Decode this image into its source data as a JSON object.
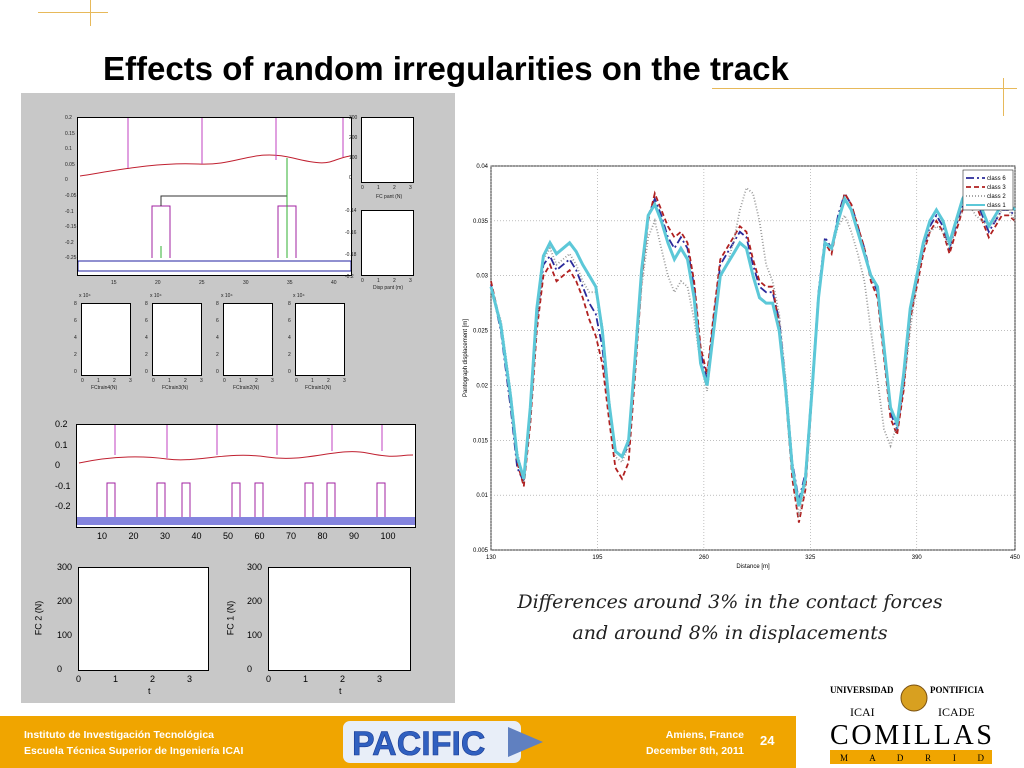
{
  "slide": {
    "title": "Effects of random irregularities on the track",
    "caption_line1": "Differences around 3% in the contact forces",
    "caption_line2": "and around 8% in displacements",
    "page_number": "24"
  },
  "footer": {
    "left_line1": "Instituto de Investigación Tecnológica",
    "left_line2": "Escuela Técnica Superior de Ingeniería ICAI",
    "right_line1": "Amiens, France",
    "right_line2": "December 8th, 2011",
    "band_color": "#f0a500"
  },
  "logos": {
    "pacific_text": "PACIFIC",
    "univ_line1": "UNIVERSIDAD",
    "univ_line2": "PONTIFICIA",
    "icai": "ICAI",
    "icade": "ICADE",
    "comillas": "COMILLAS",
    "madrid": "M A D R I D"
  },
  "sim_panel": {
    "top_yticks": [
      "0.2",
      "0.15",
      "0.1",
      "0.05",
      "0",
      "-0.05",
      "-0.1",
      "-0.15",
      "-0.2",
      "-0.25"
    ],
    "top_xticks": [
      "15",
      "20",
      "25",
      "30",
      "35",
      "40"
    ],
    "fc_pant_yticks": [
      "300",
      "200",
      "100",
      "0"
    ],
    "fc_pant_xticks": [
      "0",
      "1",
      "2",
      "3"
    ],
    "fc_pant_label": "FC pant (N)",
    "disp_pant_yticks": [
      "-0.14",
      "-0.16",
      "-0.18",
      "-0.2"
    ],
    "disp_pant_xticks": [
      "0",
      "1",
      "2",
      "3"
    ],
    "disp_pant_label": "Disp pant (m)",
    "small_yticks": [
      "8",
      "6",
      "4",
      "2",
      "0"
    ],
    "small_xticks": [
      "0",
      "1",
      "2",
      "3"
    ],
    "small_exp": "x 10⁴",
    "small_labels": [
      "FCtrain4(N)",
      "FCtrain3(N)",
      "FCtrain2(N)",
      "FCtrain1(N)"
    ],
    "mid_yticks": [
      "0.2",
      "0.1",
      "0",
      "-0.1",
      "-0.2"
    ],
    "mid_xticks": [
      "10",
      "20",
      "30",
      "40",
      "50",
      "60",
      "70",
      "80",
      "90",
      "100"
    ],
    "fc_yticks": [
      "300",
      "200",
      "100",
      "0"
    ],
    "fc_xticks": [
      "0",
      "1",
      "2",
      "3"
    ],
    "fc2_ylabel": "FC 2 (N)",
    "fc1_ylabel": "FC 1 (N)",
    "t_label": "t"
  },
  "chart_data": {
    "type": "line",
    "xlabel": "Distance [m]",
    "ylabel": "Pantograph displacement [m]",
    "xlim": [
      130,
      450
    ],
    "ylim": [
      0.005,
      0.04
    ],
    "xticks": [
      130,
      195,
      260,
      325,
      390,
      450
    ],
    "yticks": [
      0.005,
      0.01,
      0.015,
      0.02,
      0.025,
      0.03,
      0.035,
      0.04
    ],
    "ytick_labels": [
      "0.005",
      "0.01",
      "0.015",
      "0.02",
      "0.025",
      "0.03",
      "0.035",
      "0.04"
    ],
    "grid": true,
    "legend_position": "top-right",
    "series": [
      {
        "name": "class 6",
        "color": "#2a2a9a",
        "dash": "8,3,2,3",
        "width": 1.8,
        "x": [
          130,
          136,
          142,
          146,
          150,
          154,
          158,
          162,
          166,
          170,
          174,
          178,
          182,
          186,
          190,
          194,
          198,
          202,
          206,
          210,
          214,
          218,
          222,
          226,
          230,
          234,
          238,
          242,
          246,
          250,
          254,
          258,
          262,
          266,
          270,
          274,
          278,
          282,
          286,
          290,
          294,
          298,
          302,
          306,
          310,
          314,
          318,
          322,
          326,
          330,
          334,
          338,
          342,
          346,
          350,
          354,
          358,
          362,
          366,
          370,
          374,
          378,
          382,
          386,
          390,
          394,
          398,
          402,
          406,
          410,
          414,
          418,
          422,
          426,
          430,
          434,
          438,
          442,
          446,
          450
        ],
        "y": [
          0.0292,
          0.025,
          0.018,
          0.0125,
          0.0112,
          0.0175,
          0.026,
          0.031,
          0.0318,
          0.0305,
          0.031,
          0.0315,
          0.0305,
          0.029,
          0.0275,
          0.0265,
          0.0235,
          0.018,
          0.014,
          0.0135,
          0.0145,
          0.022,
          0.03,
          0.0355,
          0.037,
          0.0355,
          0.0335,
          0.0325,
          0.0335,
          0.0325,
          0.029,
          0.023,
          0.0205,
          0.026,
          0.031,
          0.032,
          0.033,
          0.034,
          0.0335,
          0.031,
          0.029,
          0.0285,
          0.0285,
          0.026,
          0.02,
          0.013,
          0.0095,
          0.012,
          0.02,
          0.0285,
          0.0335,
          0.0325,
          0.0355,
          0.0375,
          0.0365,
          0.0345,
          0.0325,
          0.03,
          0.0285,
          0.023,
          0.0175,
          0.016,
          0.02,
          0.0265,
          0.0295,
          0.0325,
          0.0345,
          0.0355,
          0.0345,
          0.0325,
          0.0345,
          0.0365,
          0.0375,
          0.037,
          0.0355,
          0.034,
          0.035,
          0.036,
          0.036,
          0.0355
        ]
      },
      {
        "name": "class 3",
        "color": "#b02020",
        "dash": "5,3",
        "width": 1.8,
        "x": [
          130,
          136,
          142,
          146,
          150,
          154,
          158,
          162,
          166,
          170,
          174,
          178,
          182,
          186,
          190,
          194,
          198,
          202,
          206,
          210,
          214,
          218,
          222,
          226,
          230,
          234,
          238,
          242,
          246,
          250,
          254,
          258,
          262,
          266,
          270,
          274,
          278,
          282,
          286,
          290,
          294,
          298,
          302,
          306,
          310,
          314,
          318,
          322,
          326,
          330,
          334,
          338,
          342,
          346,
          350,
          354,
          358,
          362,
          366,
          370,
          374,
          378,
          382,
          386,
          390,
          394,
          398,
          402,
          406,
          410,
          414,
          418,
          422,
          426,
          430,
          434,
          438,
          442,
          446,
          450
        ],
        "y": [
          0.0295,
          0.0255,
          0.0185,
          0.013,
          0.0108,
          0.0165,
          0.025,
          0.03,
          0.031,
          0.0295,
          0.03,
          0.0305,
          0.0295,
          0.028,
          0.026,
          0.0245,
          0.022,
          0.017,
          0.0125,
          0.0115,
          0.013,
          0.021,
          0.0295,
          0.035,
          0.0375,
          0.036,
          0.0345,
          0.0335,
          0.034,
          0.033,
          0.0295,
          0.0235,
          0.021,
          0.0265,
          0.0315,
          0.0325,
          0.0335,
          0.0345,
          0.034,
          0.0315,
          0.0295,
          0.029,
          0.029,
          0.0255,
          0.019,
          0.0115,
          0.0075,
          0.0105,
          0.019,
          0.028,
          0.033,
          0.032,
          0.035,
          0.0375,
          0.0365,
          0.0345,
          0.0325,
          0.0295,
          0.028,
          0.0225,
          0.017,
          0.0155,
          0.0195,
          0.026,
          0.029,
          0.032,
          0.034,
          0.035,
          0.034,
          0.032,
          0.034,
          0.036,
          0.037,
          0.0365,
          0.035,
          0.0335,
          0.0345,
          0.0355,
          0.0355,
          0.035
        ]
      },
      {
        "name": "class 2",
        "color": "#9a9a9a",
        "dash": "1,2",
        "width": 1.8,
        "x": [
          130,
          136,
          142,
          146,
          150,
          154,
          158,
          162,
          166,
          170,
          174,
          178,
          182,
          186,
          190,
          194,
          198,
          202,
          206,
          210,
          214,
          218,
          222,
          226,
          230,
          234,
          238,
          242,
          246,
          250,
          254,
          258,
          262,
          266,
          270,
          274,
          278,
          282,
          286,
          290,
          294,
          298,
          302,
          306,
          310,
          314,
          318,
          322,
          326,
          330,
          334,
          338,
          342,
          346,
          350,
          354,
          358,
          362,
          366,
          370,
          374,
          378,
          382,
          386,
          390,
          394,
          398,
          402,
          406,
          410,
          414,
          418,
          422,
          426,
          430,
          434,
          438,
          442,
          446,
          450
        ],
        "y": [
          0.0285,
          0.026,
          0.0195,
          0.014,
          0.0112,
          0.017,
          0.0255,
          0.0315,
          0.0325,
          0.031,
          0.0315,
          0.032,
          0.031,
          0.0295,
          0.0285,
          0.0285,
          0.0255,
          0.019,
          0.0135,
          0.013,
          0.0145,
          0.0215,
          0.029,
          0.0335,
          0.035,
          0.0325,
          0.03,
          0.0285,
          0.0295,
          0.029,
          0.026,
          0.022,
          0.0195,
          0.025,
          0.03,
          0.031,
          0.033,
          0.036,
          0.038,
          0.0375,
          0.035,
          0.031,
          0.0295,
          0.0265,
          0.0205,
          0.013,
          0.008,
          0.011,
          0.0195,
          0.0285,
          0.033,
          0.0325,
          0.0345,
          0.0355,
          0.034,
          0.032,
          0.0295,
          0.025,
          0.0205,
          0.016,
          0.0145,
          0.0165,
          0.02,
          0.025,
          0.0295,
          0.0325,
          0.034,
          0.0345,
          0.034,
          0.0325,
          0.0345,
          0.036,
          0.0365,
          0.0355,
          0.035,
          0.0345,
          0.035,
          0.036,
          0.036,
          0.035
        ]
      },
      {
        "name": "class 1",
        "color": "#5cc8d8",
        "dash": "",
        "width": 3,
        "x": [
          130,
          136,
          142,
          146,
          150,
          154,
          158,
          162,
          166,
          170,
          174,
          178,
          182,
          186,
          190,
          194,
          198,
          202,
          206,
          210,
          214,
          218,
          222,
          226,
          230,
          234,
          238,
          242,
          246,
          250,
          254,
          258,
          262,
          266,
          270,
          274,
          278,
          282,
          286,
          290,
          294,
          298,
          302,
          306,
          310,
          314,
          318,
          322,
          326,
          330,
          334,
          338,
          342,
          346,
          350,
          354,
          358,
          362,
          366,
          370,
          374,
          378,
          382,
          386,
          390,
          394,
          398,
          402,
          406,
          410,
          414,
          418,
          422,
          426,
          430,
          434,
          438,
          442,
          446,
          450
        ],
        "y": [
          0.029,
          0.0255,
          0.019,
          0.0135,
          0.0115,
          0.018,
          0.027,
          0.0318,
          0.033,
          0.032,
          0.0325,
          0.033,
          0.0322,
          0.031,
          0.03,
          0.029,
          0.025,
          0.0185,
          0.014,
          0.0135,
          0.015,
          0.0225,
          0.0305,
          0.0355,
          0.0365,
          0.035,
          0.033,
          0.0315,
          0.0325,
          0.0315,
          0.028,
          0.022,
          0.02,
          0.025,
          0.03,
          0.031,
          0.032,
          0.033,
          0.0325,
          0.03,
          0.028,
          0.0275,
          0.0275,
          0.025,
          0.0195,
          0.0125,
          0.009,
          0.0115,
          0.0195,
          0.028,
          0.033,
          0.0325,
          0.035,
          0.037,
          0.036,
          0.034,
          0.032,
          0.03,
          0.029,
          0.0235,
          0.018,
          0.0165,
          0.021,
          0.027,
          0.03,
          0.033,
          0.035,
          0.036,
          0.035,
          0.033,
          0.035,
          0.037,
          0.038,
          0.0375,
          0.036,
          0.0345,
          0.0355,
          0.0365,
          0.0365,
          0.036
        ]
      }
    ]
  }
}
